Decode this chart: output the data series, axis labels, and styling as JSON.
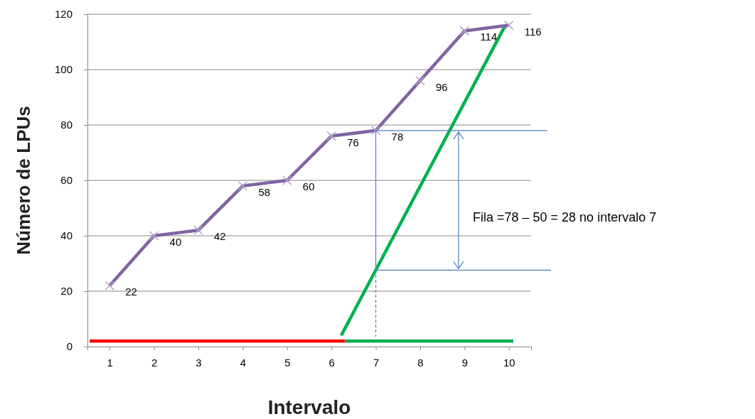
{
  "chart_data": {
    "type": "line",
    "xlabel": "Intervalo",
    "ylabel": "Número de LPUs",
    "xlim": [
      0.5,
      10.5
    ],
    "xticks": [
      1,
      2,
      3,
      4,
      5,
      6,
      7,
      8,
      9,
      10
    ],
    "ylim": [
      0,
      120
    ],
    "yticks": [
      0,
      20,
      40,
      60,
      80,
      100,
      120
    ],
    "grid": "y",
    "marker": "cross",
    "line_style": "solid",
    "series": [
      {
        "color": "#ff0000",
        "x": [
          0.55,
          6.3
        ],
        "values": [
          2,
          2
        ],
        "marker": "none"
      },
      {
        "color": "#00b050",
        "x": [
          6.3,
          10.1
        ],
        "values": [
          2,
          2
        ],
        "marker": "none"
      },
      {
        "color": "#00b050",
        "x": [
          6.22,
          9.92
        ],
        "values": [
          4,
          116
        ],
        "marker": "none"
      },
      {
        "color": "#8064a2",
        "x": [
          1,
          2,
          3,
          4,
          5,
          6,
          7,
          8,
          9,
          10
        ],
        "values": [
          22,
          40,
          42,
          58,
          60,
          76,
          78,
          96,
          114,
          116
        ],
        "data_labels": true
      }
    ],
    "annotations": [
      "Fila =78 – 50 = 28 no intervalo 7"
    ]
  }
}
